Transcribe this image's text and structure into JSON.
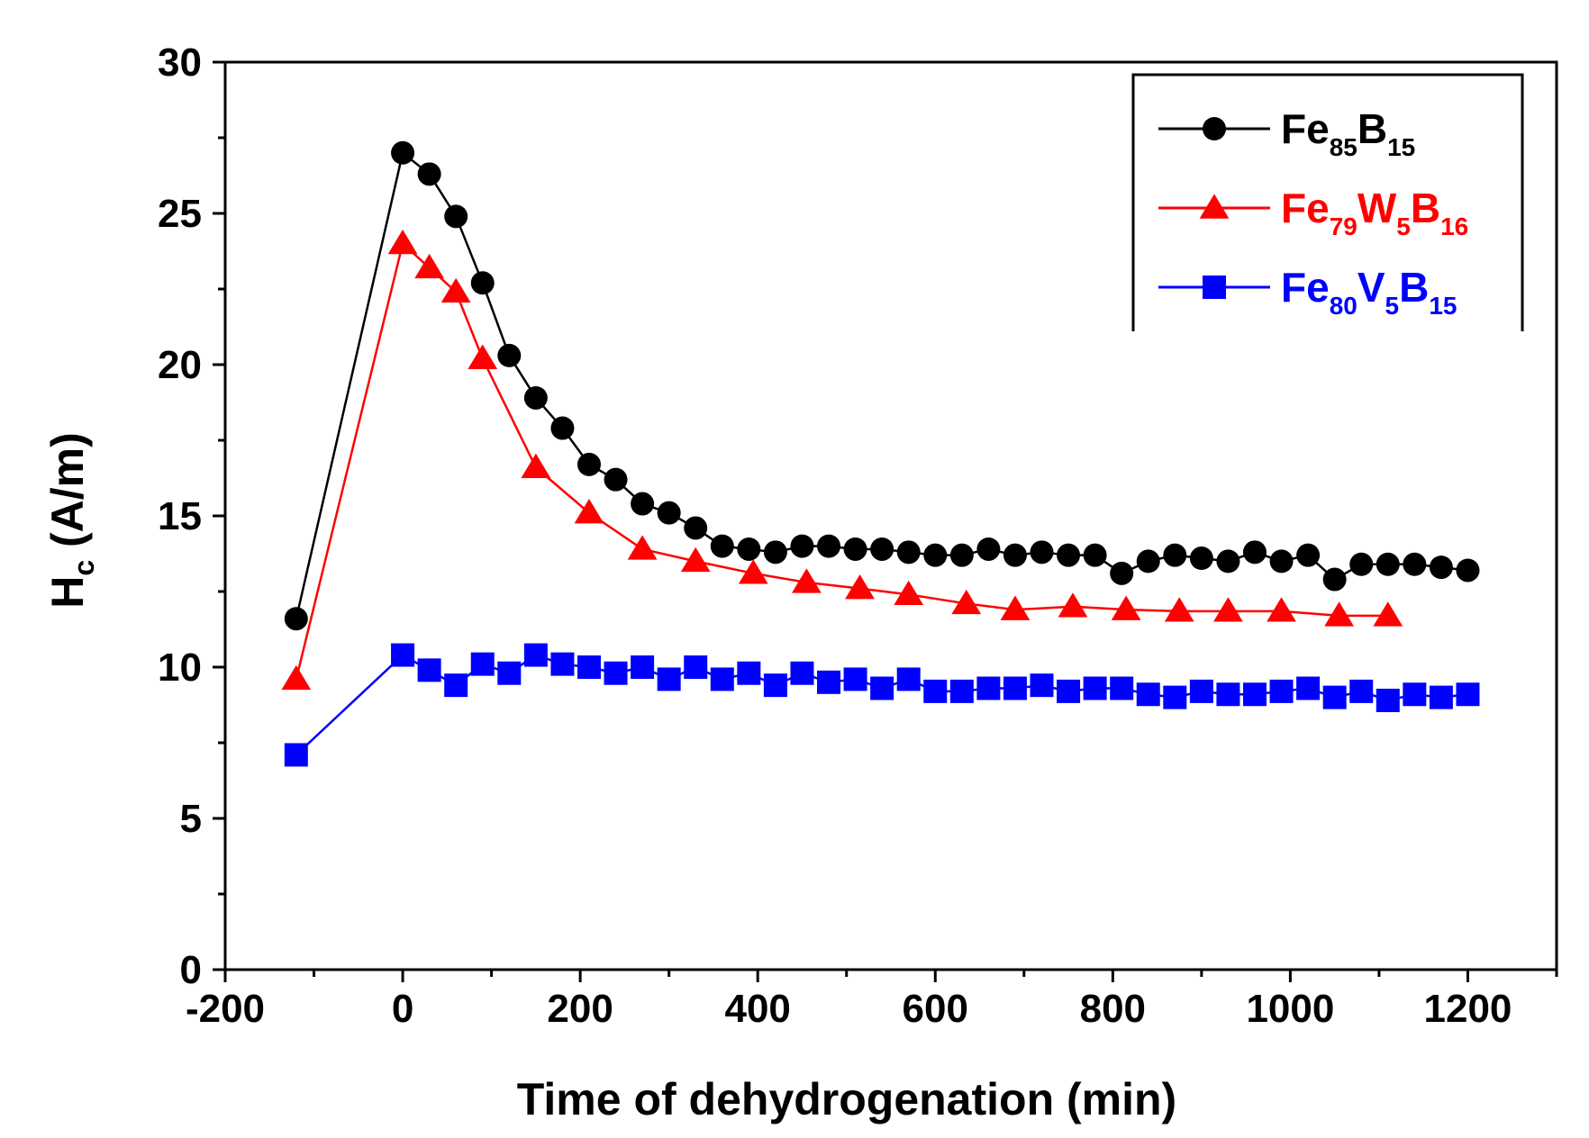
{
  "chart_data": {
    "type": "line",
    "xlabel": "Time of dehydrogenation (min)",
    "ylabel_main": "H",
    "ylabel_sub": "c",
    "ylabel_unit": " (A/m)",
    "xlim": [
      -200,
      1300
    ],
    "ylim": [
      0,
      30
    ],
    "x_ticks": [
      -200,
      0,
      200,
      400,
      600,
      800,
      1000,
      1200
    ],
    "y_ticks": [
      0,
      5,
      10,
      15,
      20,
      25,
      30
    ],
    "legend_position": "top-right",
    "series": [
      {
        "name": "Fe85B15",
        "name_parts": [
          [
            "Fe",
            false
          ],
          [
            "85",
            true
          ],
          [
            "B",
            false
          ],
          [
            "15",
            true
          ]
        ],
        "color": "#000000",
        "marker": "circle",
        "x": [
          -120,
          0,
          30,
          60,
          90,
          120,
          150,
          180,
          210,
          240,
          270,
          300,
          330,
          360,
          390,
          420,
          450,
          480,
          510,
          540,
          570,
          600,
          630,
          660,
          690,
          720,
          750,
          780,
          810,
          840,
          870,
          900,
          930,
          960,
          990,
          1020,
          1050,
          1080,
          1110,
          1140,
          1170,
          1200
        ],
        "y": [
          11.6,
          27.0,
          26.3,
          24.9,
          22.7,
          20.3,
          18.9,
          17.9,
          16.7,
          16.2,
          15.4,
          15.1,
          14.6,
          14.0,
          13.9,
          13.8,
          14.0,
          14.0,
          13.9,
          13.9,
          13.8,
          13.7,
          13.7,
          13.9,
          13.7,
          13.8,
          13.7,
          13.7,
          13.1,
          13.5,
          13.7,
          13.6,
          13.5,
          13.8,
          13.5,
          13.7,
          12.9,
          13.4,
          13.4,
          13.4,
          13.3,
          13.2
        ]
      },
      {
        "name": "Fe79W5B16",
        "name_parts": [
          [
            "Fe",
            false
          ],
          [
            "79",
            true
          ],
          [
            "W",
            false
          ],
          [
            "5",
            true
          ],
          [
            "B",
            false
          ],
          [
            "16",
            true
          ]
        ],
        "color": "#ff0000",
        "marker": "triangle",
        "x": [
          -120,
          0,
          30,
          60,
          90,
          150,
          210,
          270,
          330,
          395,
          455,
          515,
          570,
          635,
          690,
          755,
          815,
          875,
          930,
          990,
          1055,
          1110
        ],
        "y": [
          9.6,
          24.0,
          23.2,
          22.4,
          20.2,
          16.6,
          15.1,
          13.9,
          13.5,
          13.1,
          12.8,
          12.6,
          12.4,
          12.1,
          11.9,
          12.0,
          11.9,
          11.85,
          11.85,
          11.85,
          11.7,
          11.7
        ]
      },
      {
        "name": "Fe80V5B15",
        "name_parts": [
          [
            "Fe",
            false
          ],
          [
            "80",
            true
          ],
          [
            "V",
            false
          ],
          [
            "5",
            true
          ],
          [
            "B",
            false
          ],
          [
            "15",
            true
          ]
        ],
        "color": "#0000ff",
        "marker": "square",
        "x": [
          -120,
          0,
          30,
          60,
          90,
          120,
          150,
          180,
          210,
          240,
          270,
          300,
          330,
          360,
          390,
          420,
          450,
          480,
          510,
          540,
          570,
          600,
          630,
          660,
          690,
          720,
          750,
          780,
          810,
          840,
          870,
          900,
          930,
          960,
          990,
          1020,
          1050,
          1080,
          1110,
          1140,
          1170,
          1200
        ],
        "y": [
          7.1,
          10.4,
          9.9,
          9.4,
          10.1,
          9.8,
          10.4,
          10.1,
          10.0,
          9.8,
          10.0,
          9.6,
          10.0,
          9.6,
          9.8,
          9.4,
          9.8,
          9.5,
          9.6,
          9.3,
          9.6,
          9.2,
          9.2,
          9.3,
          9.3,
          9.4,
          9.2,
          9.3,
          9.3,
          9.1,
          9.0,
          9.2,
          9.1,
          9.1,
          9.2,
          9.3,
          9.0,
          9.2,
          8.9,
          9.1,
          9.0,
          9.1
        ]
      }
    ]
  }
}
